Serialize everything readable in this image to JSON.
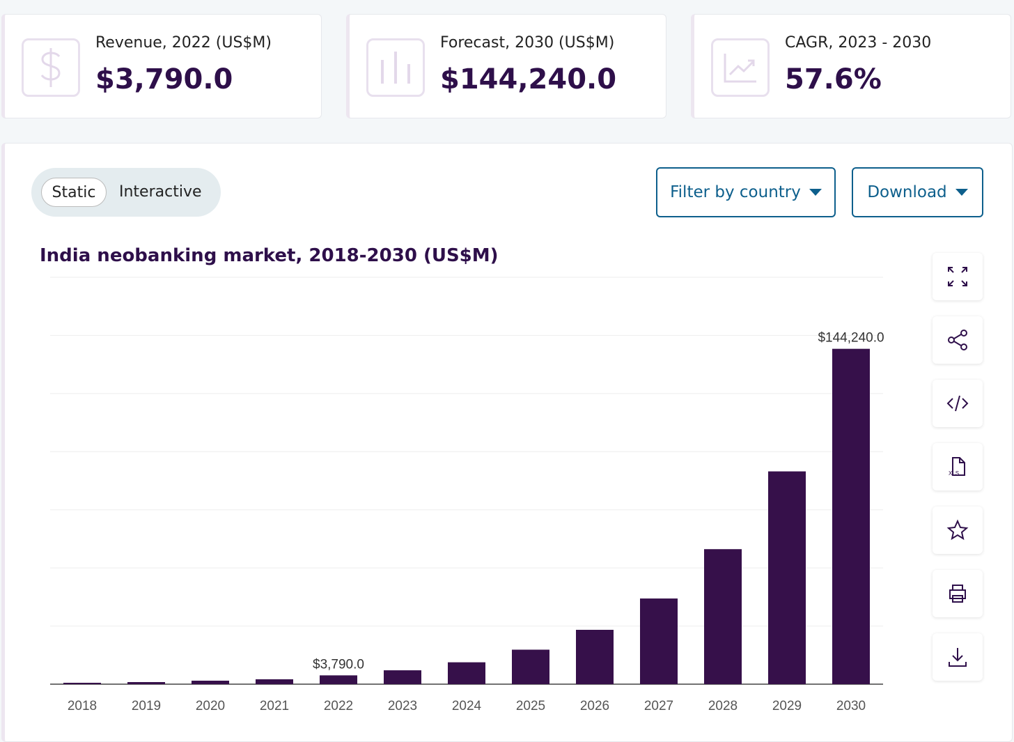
{
  "kpis": [
    {
      "label": "Revenue, 2022 (US$M)",
      "value": "$3,790.0",
      "icon": "dollar-icon"
    },
    {
      "label": "Forecast, 2030 (US$M)",
      "value": "$144,240.0",
      "icon": "bar-chart-icon"
    },
    {
      "label": "CAGR, 2023 - 2030",
      "value": "57.6%",
      "icon": "trend-chart-icon"
    }
  ],
  "toggle": {
    "static": "Static",
    "interactive": "Interactive",
    "selected": "Static"
  },
  "buttons": {
    "filter": "Filter by country",
    "download": "Download"
  },
  "side_icons": [
    "expand-icon",
    "share-icon",
    "embed-code-icon",
    "xls-file-icon",
    "star-icon",
    "print-icon",
    "download-icon"
  ],
  "colors": {
    "bar": "#36104a",
    "title": "#2e0f4a",
    "button": "#0d5f8c"
  },
  "chart_data": {
    "type": "bar",
    "title": "India neobanking market, 2018-2030 (US$M)",
    "categories": [
      "2018",
      "2019",
      "2020",
      "2021",
      "2022",
      "2023",
      "2024",
      "2025",
      "2026",
      "2027",
      "2028",
      "2029",
      "2030"
    ],
    "values": [
      600,
      900,
      1500,
      2100,
      3790,
      5970,
      9410,
      14840,
      23380,
      36850,
      58070,
      91520,
      144240
    ],
    "data_labels": {
      "2022": "$3,790.0",
      "2030": "$144,240.0"
    },
    "ylim": [
      0,
      175000
    ],
    "grid": true,
    "xlabel": "",
    "ylabel": ""
  }
}
